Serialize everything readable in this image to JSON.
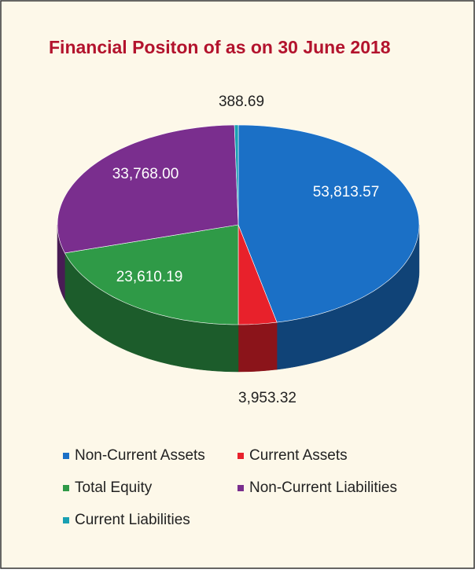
{
  "chart_data": {
    "type": "pie3d",
    "title": "Financial Positon of as on 30 June 2018",
    "categories": [
      "Non-Current Assets",
      "Current Assets",
      "Total Equity",
      "Non-Current Liabilities",
      "Current Liabilities"
    ],
    "values": [
      53813.57,
      3953.32,
      23610.19,
      33768.0,
      388.69
    ],
    "value_labels": [
      "53,813.57",
      "3,953.32",
      "23,610.19",
      "33,768.00",
      "388.69"
    ],
    "colors": [
      "#1b70c6",
      "#e8212b",
      "#2f9a47",
      "#7a2e8e",
      "#19a0b2"
    ],
    "legend": "bottom"
  }
}
